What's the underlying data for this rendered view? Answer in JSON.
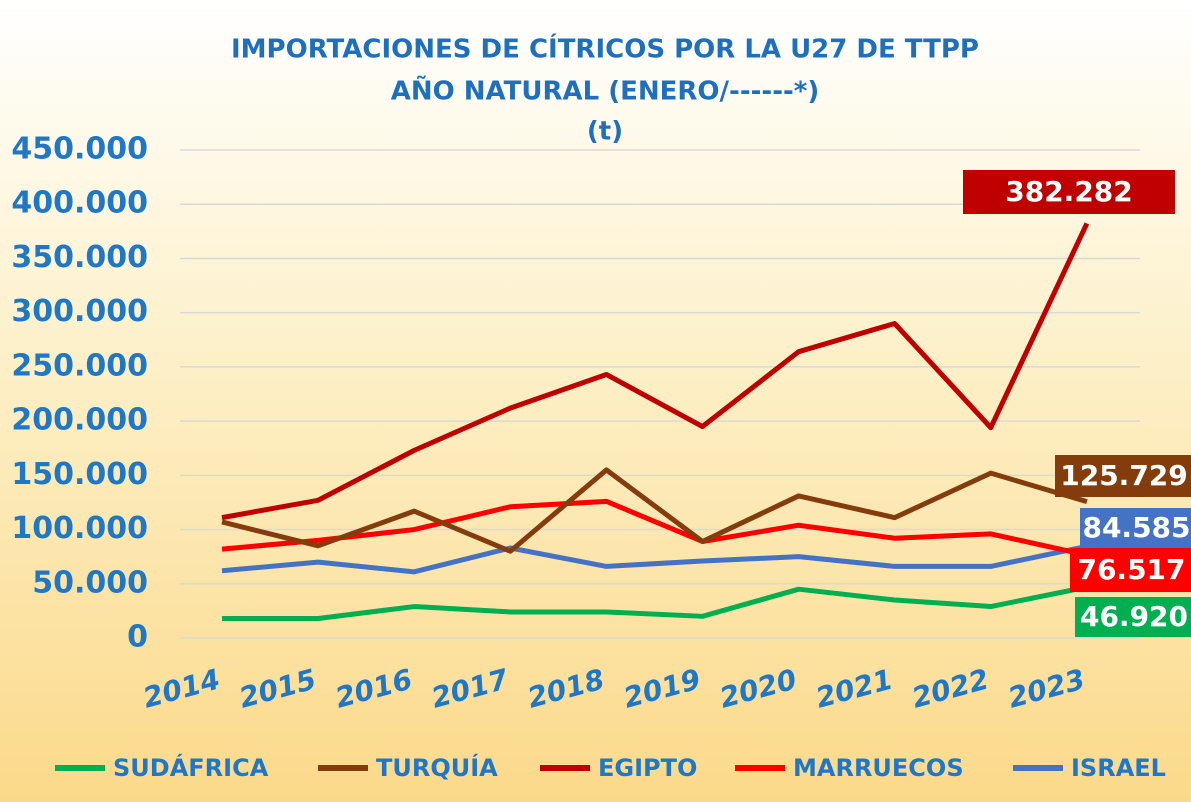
{
  "chart_data": {
    "type": "line",
    "title": [
      "IMPORTACIONES DE CÍTRICOS POR LA U27 DE TTPP",
      "AÑO NATURAL (ENERO/------*)",
      "(t)"
    ],
    "categories": [
      "2014",
      "2015",
      "2016",
      "2017",
      "2018",
      "2019",
      "2020",
      "2021",
      "2022",
      "2023"
    ],
    "series": [
      {
        "name": "SUDÁFRICA",
        "color": "#00b050",
        "values": [
          18000,
          18000,
          29000,
          24000,
          24000,
          20000,
          45000,
          35000,
          29000,
          46920
        ],
        "value_labels": [
          null,
          null,
          null,
          null,
          null,
          null,
          null,
          null,
          null,
          "46.920"
        ]
      },
      {
        "name": "TURQUÍA",
        "color": "#843c0c",
        "values": [
          107000,
          85000,
          117000,
          80000,
          155000,
          89000,
          131000,
          111000,
          152000,
          125729
        ],
        "value_labels": [
          null,
          null,
          null,
          null,
          null,
          null,
          null,
          null,
          null,
          "125.729"
        ]
      },
      {
        "name": "EGIPTO",
        "color": "#c00000",
        "values": [
          111000,
          127000,
          173000,
          212000,
          243000,
          195000,
          264000,
          290000,
          194000,
          382282
        ],
        "value_labels": [
          null,
          null,
          null,
          null,
          null,
          null,
          null,
          null,
          null,
          "382.282"
        ]
      },
      {
        "name": "MARRUECOS",
        "color": "#ff0000",
        "values": [
          82000,
          90000,
          100000,
          121000,
          126000,
          89000,
          104000,
          92000,
          96000,
          76517
        ],
        "value_labels": [
          null,
          null,
          null,
          null,
          null,
          null,
          null,
          null,
          null,
          "76.517"
        ]
      },
      {
        "name": "ISRAEL",
        "color": "#4472c4",
        "values": [
          62000,
          70000,
          61000,
          83000,
          66000,
          71000,
          75000,
          66000,
          66000,
          84585
        ],
        "value_labels": [
          null,
          null,
          null,
          null,
          null,
          null,
          null,
          null,
          null,
          "84.585"
        ]
      }
    ],
    "ylim": [
      0,
      450000
    ],
    "yticks": [
      0,
      {
        "value": 50000,
        "label": "50.000"
      },
      {
        "value": 100000,
        "label": "100.000"
      },
      {
        "value": 150000,
        "label": "150.000"
      },
      {
        "value": 200000,
        "label": "200.000"
      },
      {
        "value": 250000,
        "label": "250.000"
      },
      {
        "value": 300000,
        "label": "300.000"
      },
      {
        "value": 350000,
        "label": "350.000"
      },
      {
        "value": 400000,
        "label": "400.000"
      },
      {
        "value": 450000,
        "label": "450.000"
      }
    ],
    "grid": true,
    "legend": "bottom"
  }
}
